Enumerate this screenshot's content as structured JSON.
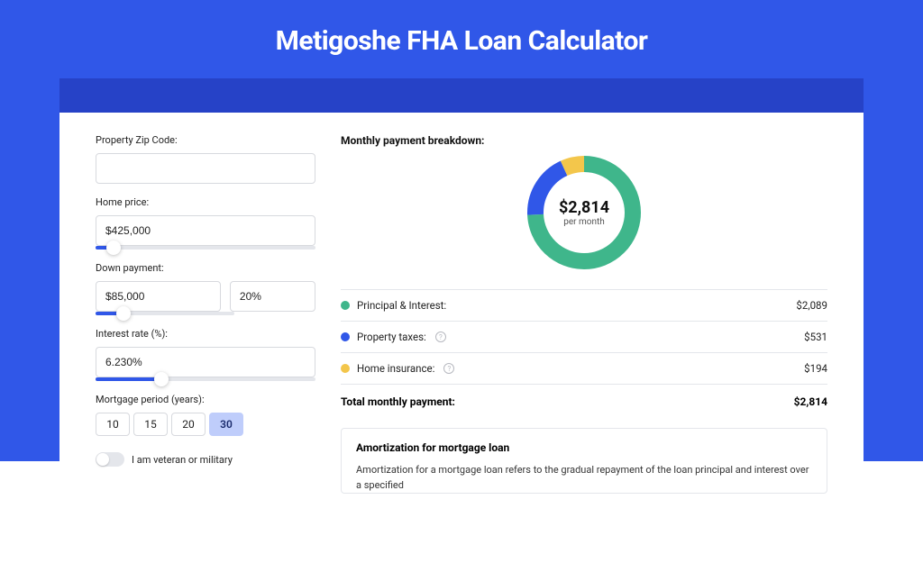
{
  "colors": {
    "page_bg": "#3057e8",
    "band_bg": "#2642c7",
    "card_bg": "#ffffff",
    "input_border": "#d7d9de",
    "slider_track": "#e4e6eb",
    "slider_fill": "#3057e8",
    "text": "#222222"
  },
  "title": "Metigoshe FHA Loan Calculator",
  "form": {
    "zip": {
      "label": "Property Zip Code:",
      "value": ""
    },
    "home_price": {
      "label": "Home price:",
      "value": "$425,000",
      "slider_pct": 8
    },
    "down_payment": {
      "label": "Down payment:",
      "amount": "$85,000",
      "pct": "20%",
      "slider_pct": 20
    },
    "interest": {
      "label": "Interest rate (%):",
      "value": "6.230%",
      "slider_pct": 30
    },
    "period": {
      "label": "Mortgage period (years):",
      "options": [
        "10",
        "15",
        "20",
        "30"
      ],
      "selected": "30"
    },
    "veteran": {
      "label": "I am veteran or military",
      "on": false
    }
  },
  "breakdown": {
    "title": "Monthly payment breakdown:",
    "donut": {
      "center_amount": "$2,814",
      "center_sub": "per month",
      "stroke_width": 18,
      "radius": 54,
      "segments": [
        {
          "key": "pi",
          "label": "Principal & Interest:",
          "value": 2089,
          "display": "$2,089",
          "color": "#3fb68b",
          "has_info": false
        },
        {
          "key": "tax",
          "label": "Property taxes:",
          "value": 531,
          "display": "$531",
          "color": "#3057e8",
          "has_info": true
        },
        {
          "key": "ins",
          "label": "Home insurance:",
          "value": 194,
          "display": "$194",
          "color": "#f3c64b",
          "has_info": true
        }
      ]
    },
    "total": {
      "label": "Total monthly payment:",
      "display": "$2,814"
    }
  },
  "amortization": {
    "title": "Amortization for mortgage loan",
    "text": "Amortization for a mortgage loan refers to the gradual repayment of the loan principal and interest over a specified"
  }
}
